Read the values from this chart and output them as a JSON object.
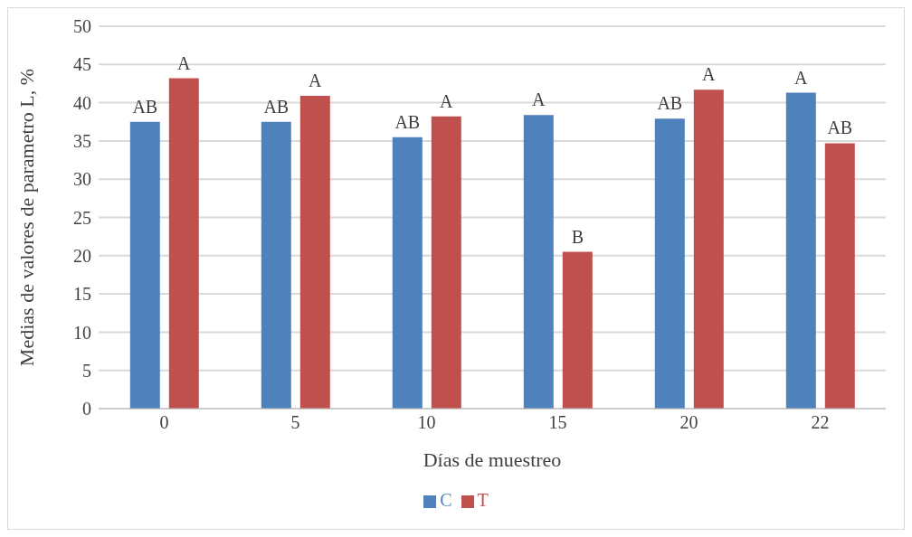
{
  "chart_data": {
    "type": "bar",
    "xlabel": "Días de muestreo",
    "ylabel": "Medias de valores de parametro L, %",
    "categories": [
      "0",
      "5",
      "10",
      "15",
      "20",
      "22"
    ],
    "series": [
      {
        "name": "C",
        "color": "#4f81bd",
        "values": [
          37.5,
          37.5,
          35.5,
          38.4,
          37.9,
          41.3
        ],
        "value_labels": [
          "AB",
          "AB",
          "AB",
          "A",
          "AB",
          "A"
        ]
      },
      {
        "name": "T",
        "color": "#c0504d",
        "values": [
          43.2,
          40.9,
          38.2,
          20.5,
          41.7,
          34.7
        ],
        "value_labels": [
          "A",
          "A",
          "A",
          "B",
          "A",
          "AB"
        ]
      }
    ],
    "ylim": [
      0,
      50
    ],
    "yticks": [
      0,
      5,
      10,
      15,
      20,
      25,
      30,
      35,
      40,
      45,
      50
    ],
    "grid": "y",
    "legend": "bottom"
  }
}
